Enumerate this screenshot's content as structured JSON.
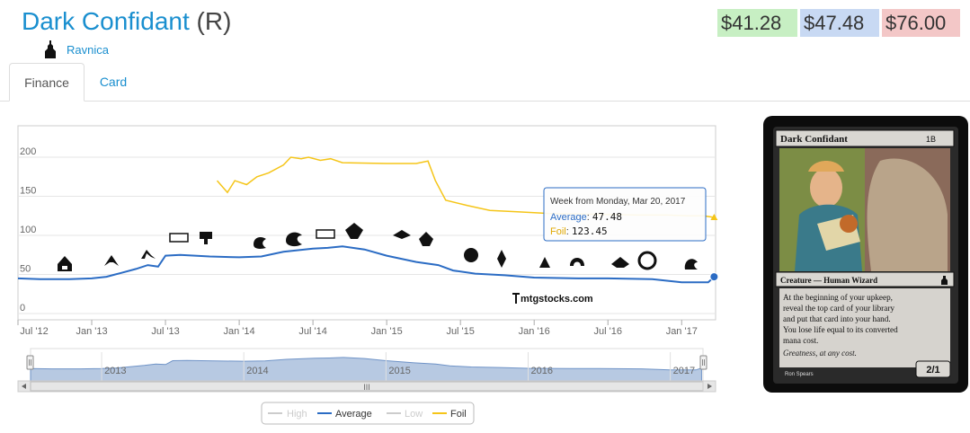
{
  "header": {
    "card_name": "Dark Confidant",
    "rarity": "(R)",
    "set_name": "Ravnica"
  },
  "prices": {
    "low": "$41.28",
    "average": "$47.48",
    "high": "$76.00",
    "colors": {
      "low_bg": "#c7efc3",
      "average_bg": "#c8d9f3",
      "high_bg": "#f3c7c7"
    }
  },
  "tabs": [
    {
      "label": "Finance",
      "active": true
    },
    {
      "label": "Card",
      "active": false
    }
  ],
  "tooltip": {
    "title": "Week from Monday, Mar 20, 2017",
    "average_label": "Average",
    "average_value": "47.48",
    "foil_label": "Foil",
    "foil_value": "123.45"
  },
  "watermark": "mtgstocks.com",
  "navigator": {
    "years": [
      "2013",
      "2014",
      "2015",
      "2016",
      "2017"
    ],
    "scroll_grip": "III"
  },
  "legend": [
    {
      "label": "High",
      "color": "#cccccc",
      "enabled": false
    },
    {
      "label": "Average",
      "color": "#2b6cc4",
      "enabled": true
    },
    {
      "label": "Low",
      "color": "#cccccc",
      "enabled": false
    },
    {
      "label": "Foil",
      "color": "#f5c518",
      "enabled": true
    }
  ],
  "card_image": {
    "name": "Dark Confidant",
    "mana_cost": "1B",
    "type_line": "Creature — Human Wizard",
    "rules_text": [
      "At the beginning of your upkeep,",
      "reveal the top card of your library",
      "and put that card into your hand.",
      "You lose life equal to its converted",
      "mana cost."
    ],
    "flavor_text": "Greatness, at any cost.",
    "power_toughness": "2/1",
    "artist": "Ron Spears"
  },
  "chart_data": {
    "type": "line",
    "title": "",
    "xlabel": "",
    "ylabel": "",
    "ylim": [
      0,
      200
    ],
    "y_ticks": [
      "0",
      "50",
      "100",
      "150",
      "200"
    ],
    "x_ticks": [
      "Jul '12",
      "Jan '13",
      "Jul '13",
      "Jan '14",
      "Jul '14",
      "Jan '15",
      "Jul '15",
      "Jan '16",
      "Jul '16",
      "Jan '17"
    ],
    "x_tick_values": [
      2012.5,
      2013.0,
      2013.5,
      2014.0,
      2014.5,
      2015.0,
      2015.5,
      2016.0,
      2016.5,
      2017.0
    ],
    "xlim": [
      2012.5,
      2017.23
    ],
    "grid": true,
    "legend_position": "bottom-center",
    "series": [
      {
        "name": "Average",
        "color": "#2b6cc4",
        "x": [
          2012.5,
          2012.65,
          2012.85,
          2013.0,
          2013.1,
          2013.2,
          2013.3,
          2013.38,
          2013.45,
          2013.5,
          2013.6,
          2013.8,
          2014.0,
          2014.15,
          2014.3,
          2014.5,
          2014.6,
          2014.7,
          2014.85,
          2015.0,
          2015.2,
          2015.35,
          2015.45,
          2015.6,
          2015.8,
          2016.0,
          2016.3,
          2016.5,
          2016.8,
          2017.0,
          2017.1,
          2017.18,
          2017.22
        ],
        "values": [
          45,
          44,
          44,
          45,
          47,
          52,
          57,
          62,
          60,
          74,
          75,
          73,
          72,
          73,
          79,
          83,
          84,
          86,
          82,
          74,
          66,
          62,
          55,
          51,
          49,
          46,
          45,
          45,
          44,
          40,
          40,
          40,
          47
        ]
      },
      {
        "name": "Foil",
        "color": "#f5c518",
        "x": [
          2013.85,
          2013.92,
          2013.97,
          2014.05,
          2014.12,
          2014.2,
          2014.3,
          2014.35,
          2014.42,
          2014.47,
          2014.55,
          2014.62,
          2014.7,
          2015.0,
          2015.2,
          2015.28,
          2015.33,
          2015.4,
          2015.55,
          2015.7,
          2015.9,
          2016.1,
          2016.4,
          2016.7,
          2016.9,
          2017.05,
          2017.15,
          2017.22
        ],
        "values": [
          170,
          155,
          170,
          165,
          175,
          180,
          190,
          200,
          198,
          200,
          196,
          198,
          193,
          192,
          192,
          195,
          170,
          145,
          138,
          132,
          130,
          128,
          127,
          126,
          126,
          125,
          125,
          123
        ]
      }
    ]
  }
}
